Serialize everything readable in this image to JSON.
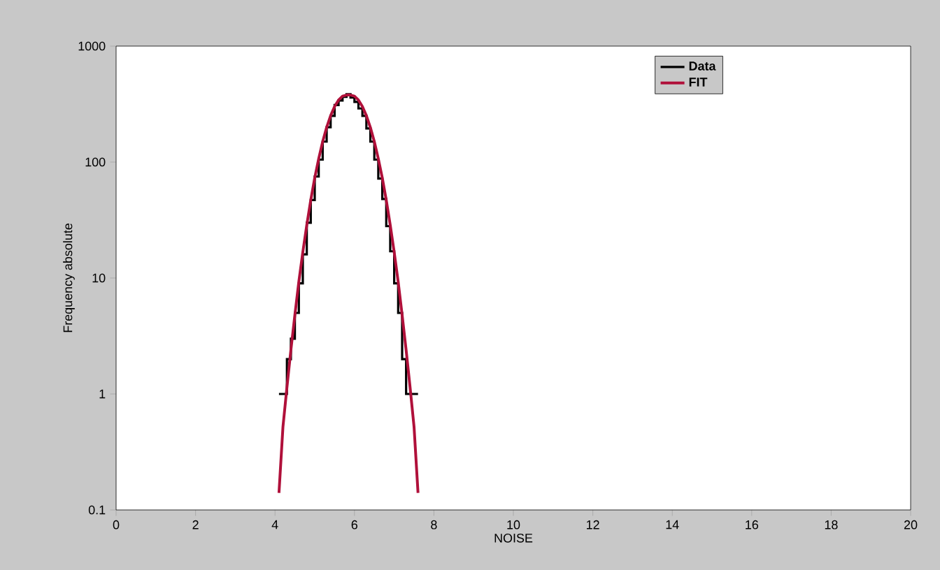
{
  "chart_data": {
    "type": "step",
    "xlabel": "NOISE",
    "ylabel": "Frequency absolute",
    "log": "y",
    "xlim": [
      0,
      20
    ],
    "xticks": [
      0,
      2,
      4,
      6,
      8,
      10,
      12,
      14,
      16,
      18,
      20
    ],
    "ylim": [
      0.1,
      1000
    ],
    "yticks": [
      0.1,
      1,
      10,
      100,
      1000
    ],
    "grid": false,
    "legend": "top right",
    "series": [
      {
        "name": "Data",
        "color": "#000000",
        "x": [
          4.1,
          4.2,
          4.3,
          4.4,
          4.5,
          4.6,
          4.7,
          4.8,
          4.9,
          5.0,
          5.1,
          5.2,
          5.3,
          5.4,
          5.5,
          5.6,
          5.7,
          5.8,
          5.9,
          6.0,
          6.1,
          6.2,
          6.3,
          6.4,
          6.5,
          6.6,
          6.7,
          6.8,
          6.9,
          7.0,
          7.1,
          7.2,
          7.3,
          7.4,
          7.5,
          7.6
        ],
        "values": [
          1,
          1,
          2,
          3,
          5,
          9,
          16,
          30,
          47,
          75,
          105,
          150,
          200,
          250,
          310,
          340,
          365,
          385,
          360,
          330,
          290,
          250,
          195,
          150,
          105,
          72,
          48,
          28,
          17,
          9,
          5,
          2,
          1,
          1,
          1,
          1
        ]
      },
      {
        "name": "FIT",
        "type": "line",
        "color": "#b0103a",
        "x": [
          4.1,
          4.2,
          4.3,
          4.4,
          4.5,
          4.6,
          4.7,
          4.8,
          4.9,
          5.0,
          5.1,
          5.2,
          5.3,
          5.4,
          5.5,
          5.6,
          5.7,
          5.8,
          5.85,
          5.9,
          6.0,
          6.1,
          6.2,
          6.3,
          6.4,
          6.5,
          6.6,
          6.7,
          6.8,
          6.9,
          7.0,
          7.1,
          7.2,
          7.3,
          7.4,
          7.5,
          7.6
        ],
        "values": [
          0.14,
          0.52,
          1.14,
          2.4,
          4.8,
          9.3,
          16.7,
          28.7,
          47,
          73,
          107,
          150,
          199,
          251,
          301,
          343,
          370,
          378,
          380,
          378,
          370,
          343,
          301,
          251,
          199,
          150,
          107,
          73,
          47,
          28.7,
          16.7,
          9.3,
          4.8,
          2.4,
          1.14,
          0.52,
          0.14
        ]
      }
    ]
  }
}
